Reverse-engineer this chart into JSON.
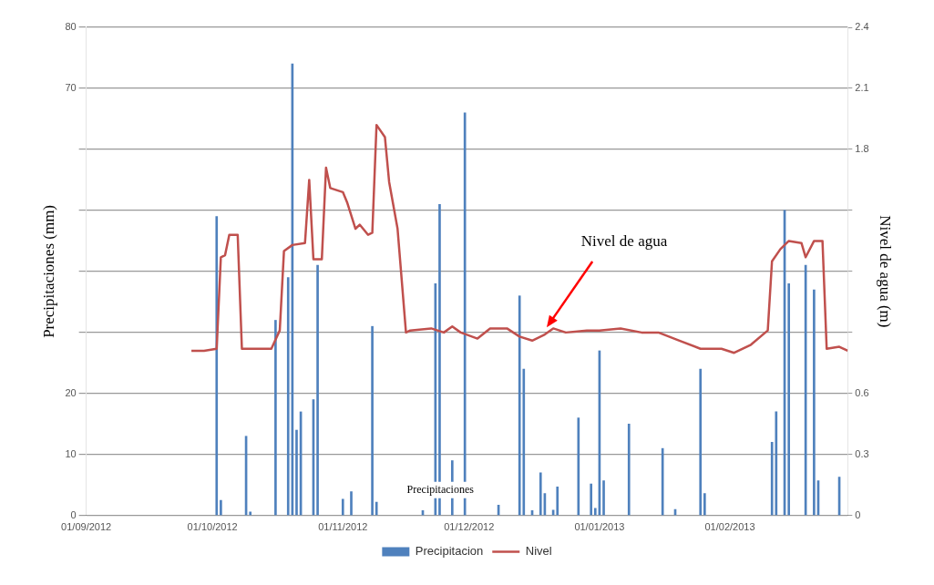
{
  "chart_data": {
    "type": "bar",
    "ylabel": "Precipitaciones (mm)",
    "y2label": "Nivel de agua (m)",
    "xlim": [
      "2012-09-01",
      "2013-03-01"
    ],
    "xticks": [
      {
        "value": "2012-09-01",
        "label": "01/09/2012"
      },
      {
        "value": "2012-10-01",
        "label": "01/10/2012"
      },
      {
        "value": "2012-11-01",
        "label": "01/11/2012"
      },
      {
        "value": "2012-12-01",
        "label": "01/12/2012"
      },
      {
        "value": "2013-01-01",
        "label": "01/01/2013"
      },
      {
        "value": "2013-02-01",
        "label": "01/02/2013"
      }
    ],
    "ylim": [
      0,
      80
    ],
    "yticks": [
      0,
      10,
      20,
      {
        "value": 30,
        "label": null
      },
      {
        "value": 40,
        "label": null
      },
      {
        "value": 50,
        "label": null
      },
      {
        "value": 60,
        "label": null
      },
      70,
      80
    ],
    "y2lim": [
      0,
      2.4
    ],
    "y2ticks": [
      0,
      0.3,
      0.6,
      {
        "value": 0.9,
        "label": null
      },
      {
        "value": 1.2,
        "label": null
      },
      {
        "value": 1.5,
        "label": null
      },
      1.8,
      2.1,
      2.4
    ],
    "grid": "y",
    "legend": "bottom",
    "annotations": [
      "Nivel de agua",
      "Precipitaciones"
    ],
    "series": [
      {
        "name": "Precipitacion",
        "color": "#4f81bd",
        "x": [
          "2012-10-02",
          "2012-10-03",
          "2012-10-09",
          "2012-10-10",
          "2012-10-16",
          "2012-10-19",
          "2012-10-20",
          "2012-10-21",
          "2012-10-22",
          "2012-10-25",
          "2012-10-26",
          "2012-11-01",
          "2012-11-03",
          "2012-11-08",
          "2012-11-09",
          "2012-11-20",
          "2012-11-23",
          "2012-11-24",
          "2012-11-27",
          "2012-11-30",
          "2012-12-08",
          "2012-12-13",
          "2012-12-14",
          "2012-12-16",
          "2012-12-18",
          "2012-12-19",
          "2012-12-21",
          "2012-12-22",
          "2012-12-27",
          "2012-12-30",
          "2012-12-31",
          "2013-01-01",
          "2013-01-02",
          "2013-01-08",
          "2013-01-16",
          "2013-01-19",
          "2013-01-25",
          "2013-01-26",
          "2013-02-11",
          "2013-02-12",
          "2013-02-14",
          "2013-02-15",
          "2013-02-19",
          "2013-02-21",
          "2013-02-22",
          "2013-02-27"
        ],
        "values": [
          49,
          2.5,
          13,
          0.6,
          32,
          39,
          74,
          14,
          17,
          19,
          41,
          2.7,
          3.9,
          31,
          2.2,
          0.8,
          38,
          51,
          9,
          66,
          1.7,
          36,
          24,
          0.8,
          7,
          3.6,
          0.9,
          4.7,
          16,
          5.2,
          1.2,
          27,
          5.7,
          15,
          11,
          1,
          24,
          3.6,
          12,
          17,
          50,
          38,
          41,
          37,
          5.7,
          6.3
        ]
      },
      {
        "name": "Nivel",
        "type": "line",
        "axis": "y2",
        "color": "#c0504d",
        "x": [
          "2012-09-26",
          "2012-09-29",
          "2012-10-02",
          "2012-10-03",
          "2012-10-04",
          "2012-10-05",
          "2012-10-07",
          "2012-10-08",
          "2012-10-15",
          "2012-10-17",
          "2012-10-18",
          "2012-10-20",
          "2012-10-23",
          "2012-10-24",
          "2012-10-25",
          "2012-10-27",
          "2012-10-28",
          "2012-10-29",
          "2012-11-01",
          "2012-11-02",
          "2012-11-04",
          "2012-11-05",
          "2012-11-07",
          "2012-11-08",
          "2012-11-09",
          "2012-11-11",
          "2012-11-12",
          "2012-11-14",
          "2012-11-16",
          "2012-11-17",
          "2012-11-22",
          "2012-11-25",
          "2012-11-27",
          "2012-11-29",
          "2012-12-03",
          "2012-12-06",
          "2012-12-10",
          "2012-12-13",
          "2012-12-16",
          "2012-12-19",
          "2012-12-21",
          "2012-12-24",
          "2012-12-29",
          "2013-01-01",
          "2013-01-06",
          "2013-01-11",
          "2013-01-15",
          "2013-01-20",
          "2013-01-25",
          "2013-01-30",
          "2013-02-02",
          "2013-02-06",
          "2013-02-10",
          "2013-02-11",
          "2013-02-13",
          "2013-02-15",
          "2013-02-18",
          "2013-02-19",
          "2013-02-21",
          "2013-02-23",
          "2013-02-24",
          "2013-02-27",
          "2013-03-01"
        ],
        "values": [
          0.81,
          0.81,
          0.82,
          1.27,
          1.28,
          1.38,
          1.38,
          0.82,
          0.82,
          0.91,
          1.3,
          1.33,
          1.34,
          1.65,
          1.26,
          1.26,
          1.71,
          1.61,
          1.59,
          1.54,
          1.41,
          1.43,
          1.38,
          1.39,
          1.92,
          1.86,
          1.64,
          1.41,
          0.9,
          0.91,
          0.92,
          0.9,
          0.93,
          0.9,
          0.87,
          0.92,
          0.92,
          0.88,
          0.86,
          0.89,
          0.92,
          0.9,
          0.91,
          0.91,
          0.92,
          0.9,
          0.9,
          0.86,
          0.82,
          0.82,
          0.8,
          0.84,
          0.91,
          1.25,
          1.31,
          1.35,
          1.34,
          1.27,
          1.35,
          1.35,
          0.82,
          0.83,
          0.81
        ]
      }
    ]
  }
}
